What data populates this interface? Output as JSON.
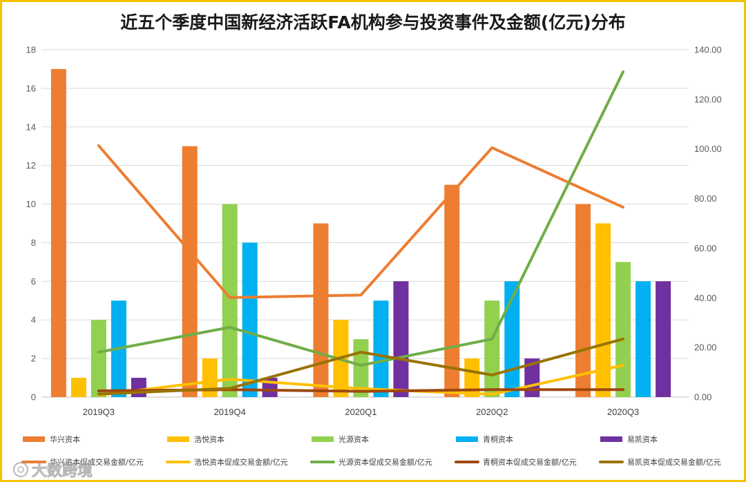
{
  "chart_data": {
    "type": "bar",
    "title": "近五个季度中国新经济活跃FA机构参与投资事件及金额(亿元)分布",
    "categories": [
      "2019Q3",
      "2019Q4",
      "2020Q1",
      "2020Q2",
      "2020Q3"
    ],
    "y_left": {
      "min": 0,
      "max": 18,
      "tick_labels": [
        "0",
        "2",
        "4",
        "6",
        "8",
        "10",
        "12",
        "14",
        "16",
        "18"
      ]
    },
    "y_right": {
      "min": 0,
      "max": 140,
      "tick_labels": [
        "0.00",
        "20.00",
        "40.00",
        "60.00",
        "80.00",
        "100.00",
        "120.00",
        "140.00"
      ]
    },
    "grid": true,
    "legend_position": "bottom",
    "series": [
      {
        "name": "华兴资本",
        "type": "bar",
        "axis": "left",
        "color": "#ED7D31",
        "values": [
          17,
          13,
          9,
          11,
          10
        ]
      },
      {
        "name": "浩悦资本",
        "type": "bar",
        "axis": "left",
        "color": "#FFC000",
        "values": [
          1,
          2,
          4,
          2,
          9
        ]
      },
      {
        "name": "光源资本",
        "type": "bar",
        "axis": "left",
        "color": "#92D050",
        "values": [
          4,
          10,
          3,
          5,
          7
        ]
      },
      {
        "name": "青桐资本",
        "type": "bar",
        "axis": "left",
        "color": "#00B0F0",
        "values": [
          5,
          8,
          5,
          6,
          6
        ]
      },
      {
        "name": "易凯资本",
        "type": "bar",
        "axis": "left",
        "color": "#7030A0",
        "values": [
          1,
          1,
          6,
          2,
          6
        ]
      },
      {
        "name": "华兴资本促成交易金额/亿元",
        "type": "line",
        "axis": "right",
        "color": "#ED7D31",
        "values": [
          101.3,
          40.1,
          41.1,
          100.5,
          76.5
        ]
      },
      {
        "name": "浩悦资本促成交易金额/亿元",
        "type": "line",
        "axis": "right",
        "color": "#FFC000",
        "values": [
          0.8,
          7.2,
          3.4,
          1.1,
          12.8
        ]
      },
      {
        "name": "光源资本促成交易金额/亿元",
        "type": "line",
        "axis": "right",
        "color": "#70AD47",
        "values": [
          18.1,
          28.1,
          12.8,
          23.4,
          131.1
        ]
      },
      {
        "name": "青桐资本促成交易金额/亿元",
        "type": "line",
        "axis": "right",
        "color": "#9E480E",
        "values": [
          2.5,
          3.0,
          2.3,
          3.0,
          3.0
        ]
      },
      {
        "name": "易凯资本促成交易金额/亿元",
        "type": "line",
        "axis": "right",
        "color": "#997300",
        "values": [
          1.2,
          3.5,
          18.1,
          8.9,
          23.4
        ]
      }
    ]
  },
  "watermark": "大数跨境"
}
